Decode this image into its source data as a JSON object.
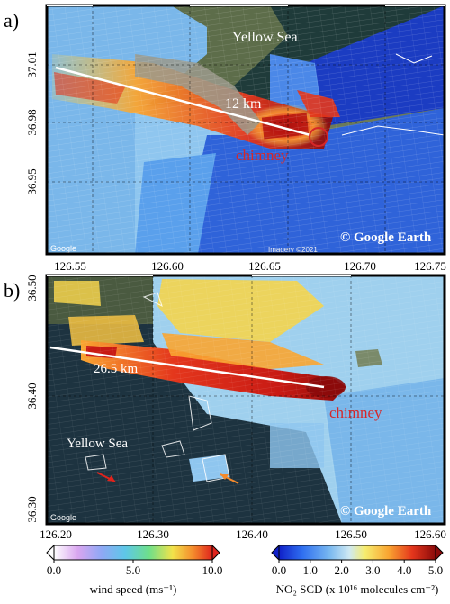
{
  "panels": [
    {
      "letter": "a)",
      "water_label": "Yellow Sea",
      "distance_label": "12 km",
      "source_label": "chimney",
      "copyright": "© Google Earth",
      "imagery_credit": "Imagery ©2021",
      "google_logo": "Google",
      "x_ticks": [
        "126.55",
        "126.60",
        "126.65",
        "126.70",
        "126.75"
      ],
      "y_ticks": [
        "37.01",
        "36.98",
        "36.95"
      ]
    },
    {
      "letter": "b)",
      "water_label": "Yellow Sea",
      "distance_label": "26.5 km",
      "source_label": "chimney",
      "copyright": "© Google Earth",
      "google_logo": "Google",
      "x_ticks": [
        "126.20",
        "126.30",
        "126.40",
        "126.50",
        "126.60"
      ],
      "y_ticks": [
        "36.50",
        "36.40",
        "36.30"
      ]
    }
  ],
  "colorbars": {
    "wind": {
      "ticks": [
        "0.0",
        "5.0",
        "10.0"
      ],
      "label": "wind speed (ms⁻¹)"
    },
    "no2": {
      "ticks": [
        "0.0",
        "1.0",
        "2.0",
        "3.0",
        "4.0",
        "5.0"
      ],
      "label": "NO₂ SCD (x 10¹⁶ molecules cm⁻²)"
    }
  },
  "colors": {
    "plume_core": "#a50f15",
    "plume_high": "#e31a1c",
    "plume_mid": "#fd8d3c",
    "plume_low": "#fed976",
    "background_low": "#2c5fd9",
    "background_mid": "#8ecae6",
    "sea": "#1e3a3a",
    "land": "#8a8a7a",
    "transect_line": "#ffffff",
    "source_marker": "#d62728",
    "wind_arrow": "#e8531e"
  }
}
